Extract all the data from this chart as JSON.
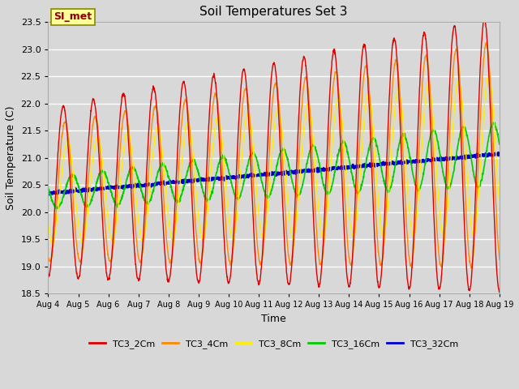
{
  "title": "Soil Temperatures Set 3",
  "xlabel": "Time",
  "ylabel": "Soil Temperature (C)",
  "ylim": [
    18.5,
    23.5
  ],
  "n_days": 15,
  "x_tick_labels": [
    "Aug 4",
    "Aug 5",
    "Aug 6",
    "Aug 7",
    "Aug 8",
    "Aug 9",
    "Aug 10",
    "Aug 11",
    "Aug 12",
    "Aug 13",
    "Aug 14",
    "Aug 15",
    "Aug 16",
    "Aug 17",
    "Aug 18",
    "Aug 19"
  ],
  "x_tick_positions": [
    0,
    1,
    2,
    3,
    4,
    5,
    6,
    7,
    8,
    9,
    10,
    11,
    12,
    13,
    14,
    15
  ],
  "series_colors": [
    "#dd0000",
    "#ff8800",
    "#ffee00",
    "#00cc00",
    "#0000cc"
  ],
  "series_labels": [
    "TC3_2Cm",
    "TC3_4Cm",
    "TC3_8Cm",
    "TC3_16Cm",
    "TC3_32Cm"
  ],
  "annotation_text": "SI_met",
  "bg_color": "#d8d8d8",
  "plot_bg_color": "#d8d8d8",
  "grid_color": "#ffffff",
  "n_points": 2000,
  "base_temp": 20.35,
  "trend": 0.048,
  "amplitudes": [
    1.55,
    1.25,
    0.9,
    0.28,
    0.0
  ],
  "amplitude_growth": [
    0.065,
    0.055,
    0.038,
    0.02,
    0.0
  ],
  "phase_shifts": [
    0.0,
    0.06,
    0.14,
    0.3,
    0.0
  ],
  "linewidths": [
    1.0,
    1.0,
    1.0,
    1.2,
    1.8
  ]
}
